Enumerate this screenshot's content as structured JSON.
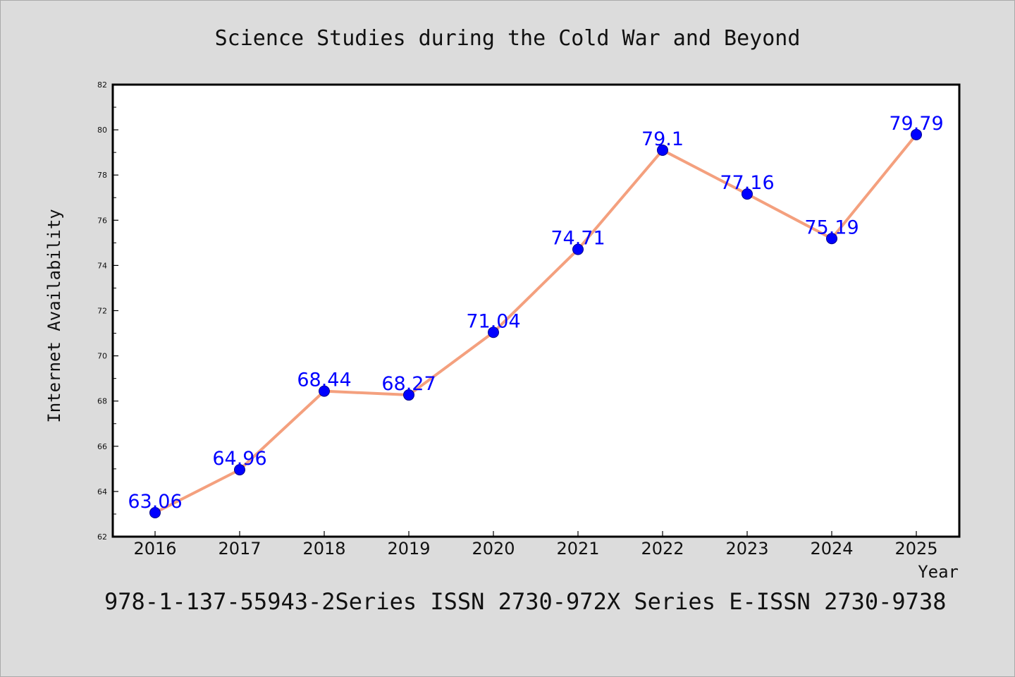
{
  "footer_text": "978-1-137-55943-2Series ISSN 2730-972X Series E-ISSN 2730-9738",
  "colors": {
    "background": "#dcdcdc",
    "plot_background": "#ffffff",
    "line": "#f4a07e",
    "marker": "#0000ff",
    "data_label": "#0000ff"
  },
  "chart_data": {
    "type": "line",
    "title": "Science Studies during the Cold War and Beyond",
    "xlabel": "Year",
    "ylabel": "Internet Availability",
    "categories": [
      "2016",
      "2017",
      "2018",
      "2019",
      "2020",
      "2021",
      "2022",
      "2023",
      "2024",
      "2025"
    ],
    "series": [
      {
        "values": [
          63.06,
          64.96,
          68.44,
          68.27,
          71.04,
          74.71,
          79.1,
          77.16,
          75.19,
          79.79
        ],
        "labels": [
          "63.06",
          "64.96",
          "68.44",
          "68.27",
          "71.04",
          "74.71",
          "79.1",
          "77.16",
          "75.19",
          "79.79"
        ]
      }
    ],
    "ylim": [
      62,
      82
    ],
    "yticks": [
      "62",
      "64",
      "66",
      "68",
      "70",
      "72",
      "74",
      "76",
      "78",
      "80",
      "82"
    ],
    "grid": false,
    "legend": false
  }
}
